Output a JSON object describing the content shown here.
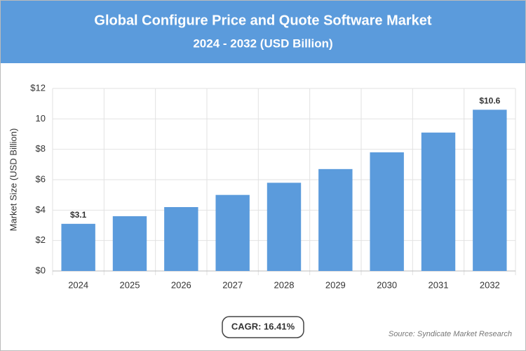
{
  "chart_data": {
    "type": "bar",
    "title": "Global Configure Price and Quote Software Market",
    "subtitle": "2024 - 2032 (USD Billion)",
    "y_label": "Market Size (USD Billion)",
    "categories": [
      "2024",
      "2025",
      "2026",
      "2027",
      "2028",
      "2029",
      "2030",
      "2031",
      "2032"
    ],
    "values": [
      3.1,
      3.6,
      4.2,
      5.0,
      5.8,
      6.7,
      7.8,
      9.1,
      10.6
    ],
    "value_labels": [
      "$3.1",
      null,
      null,
      null,
      null,
      null,
      null,
      null,
      "$10.6"
    ],
    "color": "#5b9bdc",
    "ylim": [
      0,
      12
    ],
    "yticks": [
      {
        "value": 0,
        "label": "$0"
      },
      {
        "value": 2,
        "label": "$2"
      },
      {
        "value": 4,
        "label": "$4"
      },
      {
        "value": 6,
        "label": "$6"
      },
      {
        "value": 8,
        "label": "$8"
      },
      10,
      {
        "value": 12,
        "label": "$12"
      }
    ],
    "grid": true,
    "annotation": "CAGR: 16.41%",
    "source": "Source: Syndicate Market Research"
  }
}
